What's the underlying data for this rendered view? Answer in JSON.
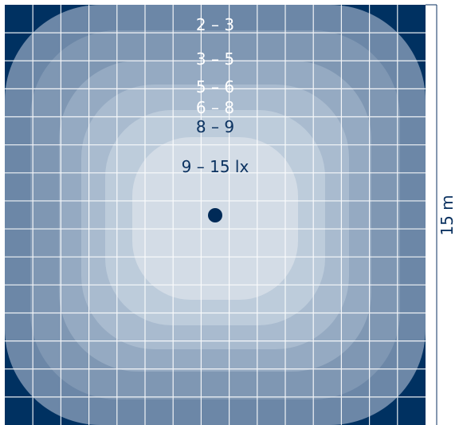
{
  "diagram": {
    "zones": [
      {
        "label": "2 – 3",
        "color": "#e5ebf2",
        "text_color": "#ffffff"
      },
      {
        "label": "3 – 5",
        "color": "#b7c6d6",
        "text_color": "#ffffff"
      },
      {
        "label": "5 – 6",
        "color": "#9bafc4",
        "text_color": "#ffffff"
      },
      {
        "label": "6 – 8",
        "color": "#8aa1b9",
        "text_color": "#ffffff"
      },
      {
        "label": "8 – 9",
        "color": "#c4d1de",
        "text_color": "#0b3260"
      },
      {
        "label": "9 – 15 lx",
        "color": "#d4dde7",
        "text_color": "#0b3260"
      }
    ],
    "dimension_label": "15 m",
    "colors": {
      "background": "#003161",
      "grid": "#ffffff",
      "luminaire": "#002a57",
      "dimension_text": "#0b3260",
      "dimension_line": "#0b3260"
    }
  }
}
